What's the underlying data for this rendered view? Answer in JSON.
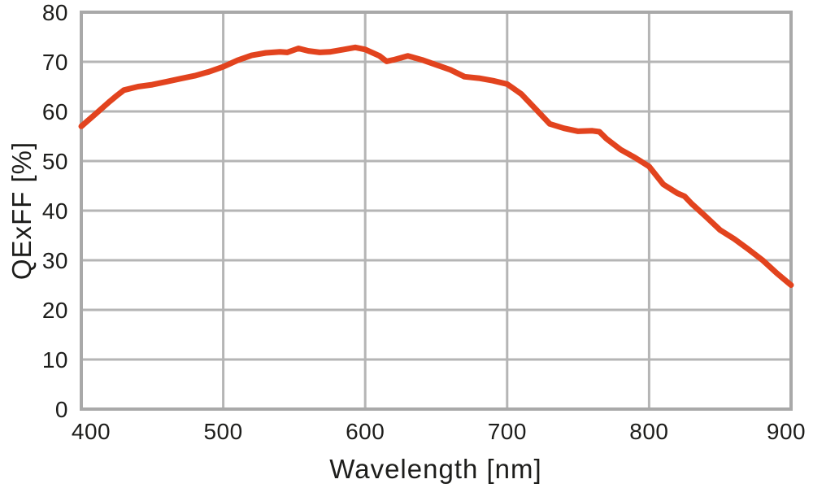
{
  "chart_data": {
    "type": "line",
    "title": "",
    "xlabel": "Wavelength [nm]",
    "ylabel": "QExFF [%]",
    "xlim": [
      400,
      900
    ],
    "ylim": [
      0,
      80
    ],
    "xticks": [
      400,
      500,
      600,
      700,
      800,
      900
    ],
    "yticks": [
      0,
      10,
      20,
      30,
      40,
      50,
      60,
      70,
      80
    ],
    "grid": true,
    "legend": "none",
    "series": [
      {
        "name": "QExFF",
        "color": "#E2431E",
        "x": [
          400,
          410,
          420,
          425,
          430,
          440,
          450,
          460,
          470,
          480,
          490,
          500,
          510,
          520,
          530,
          540,
          545,
          553,
          560,
          568,
          575,
          585,
          593,
          600,
          610,
          615,
          620,
          630,
          640,
          650,
          660,
          670,
          680,
          690,
          700,
          710,
          720,
          730,
          740,
          750,
          760,
          765,
          770,
          780,
          790,
          800,
          810,
          820,
          825,
          830,
          840,
          850,
          860,
          870,
          880,
          890,
          900
        ],
        "y": [
          57.0,
          59.5,
          62.0,
          63.2,
          64.3,
          65.0,
          65.4,
          66.0,
          66.6,
          67.2,
          68.0,
          69.0,
          70.3,
          71.3,
          71.8,
          72.0,
          71.9,
          72.7,
          72.2,
          71.9,
          72.0,
          72.5,
          72.9,
          72.5,
          71.2,
          70.1,
          70.4,
          71.2,
          70.4,
          69.4,
          68.4,
          67.0,
          66.7,
          66.2,
          65.5,
          63.5,
          60.5,
          57.5,
          56.6,
          56.0,
          56.1,
          55.9,
          54.5,
          52.3,
          50.7,
          48.9,
          45.3,
          43.5,
          42.9,
          41.4,
          38.8,
          36.1,
          34.3,
          32.2,
          30.0,
          27.4,
          25.0
        ]
      }
    ]
  },
  "colors": {
    "line": "#E2431E",
    "grid": "#B5B5B5",
    "axis_border": "#A9A9A9",
    "text": "#1D1D1B",
    "background": "#FFFFFF"
  }
}
